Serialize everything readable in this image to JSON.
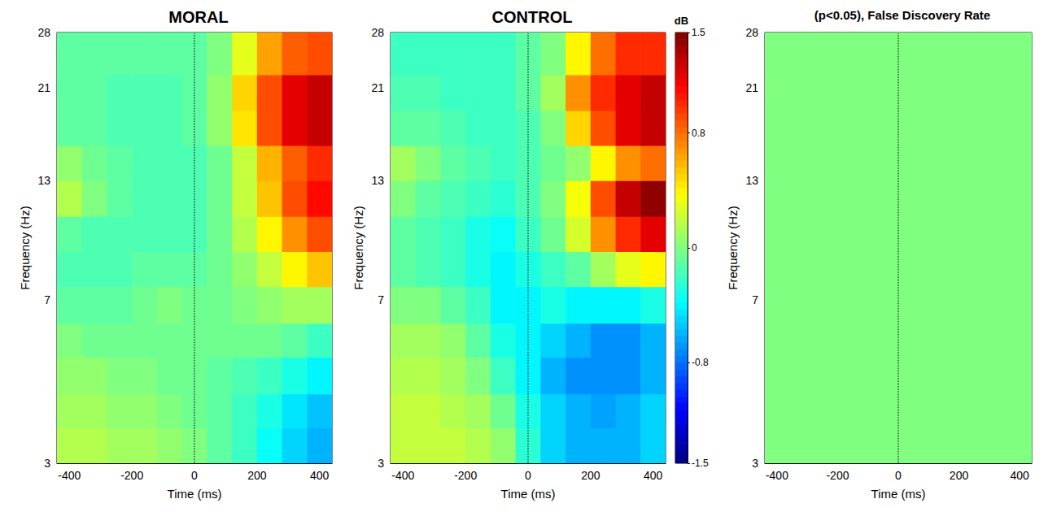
{
  "chart_data": [
    {
      "type": "heatmap",
      "title": "MORAL",
      "xlabel": "Time (ms)",
      "ylabel": "Frequency (Hz)",
      "xlim": [
        -440,
        440
      ],
      "xticks": [
        -400,
        -200,
        0,
        200,
        400
      ],
      "ylim": [
        3,
        28
      ],
      "yticks": [
        3,
        7,
        13,
        21,
        28
      ],
      "log": "y",
      "event_time": 0,
      "time_bins": [
        -440,
        -360,
        -280,
        -200,
        -120,
        -40,
        40,
        120,
        200,
        280,
        360,
        440
      ],
      "freq_bins": [
        3,
        3.6,
        4.3,
        5.2,
        6.2,
        7.5,
        9,
        10.8,
        13,
        15.6,
        18.7,
        22.5,
        28
      ],
      "cells": [
        [
          0.15,
          0.15,
          0.1,
          0.1,
          0.05,
          0,
          -0.1,
          -0.2,
          -0.35,
          -0.5,
          -0.6
        ],
        [
          0.1,
          0.1,
          0.05,
          0.05,
          0,
          -0.05,
          -0.1,
          -0.2,
          -0.3,
          -0.45,
          -0.55
        ],
        [
          0.05,
          0.05,
          0,
          0,
          -0.05,
          -0.05,
          -0.1,
          -0.15,
          -0.2,
          -0.3,
          -0.4
        ],
        [
          0,
          -0.05,
          -0.05,
          -0.05,
          -0.05,
          -0.05,
          -0.05,
          -0.05,
          -0.05,
          -0.1,
          -0.2
        ],
        [
          -0.1,
          -0.1,
          -0.1,
          -0.05,
          0,
          -0.05,
          -0.05,
          0,
          0.05,
          0.1,
          0.1
        ],
        [
          -0.15,
          -0.15,
          -0.15,
          -0.1,
          -0.1,
          -0.1,
          -0.05,
          0.05,
          0.2,
          0.4,
          0.55
        ],
        [
          -0.1,
          -0.15,
          -0.15,
          -0.15,
          -0.15,
          -0.15,
          -0.05,
          0.15,
          0.4,
          0.7,
          0.9
        ],
        [
          0.15,
          0,
          -0.1,
          -0.15,
          -0.15,
          -0.15,
          -0.05,
          0.2,
          0.55,
          0.9,
          1.1
        ],
        [
          0.05,
          -0.05,
          -0.1,
          -0.15,
          -0.15,
          -0.15,
          -0.05,
          0.2,
          0.6,
          0.85,
          1.0
        ],
        [
          -0.1,
          -0.1,
          -0.15,
          -0.15,
          -0.15,
          -0.1,
          0.05,
          0.45,
          0.9,
          1.2,
          1.3
        ],
        [
          -0.1,
          -0.1,
          -0.15,
          -0.15,
          -0.15,
          -0.1,
          0.05,
          0.5,
          0.9,
          1.2,
          1.3
        ],
        [
          -0.1,
          -0.1,
          -0.1,
          -0.1,
          -0.1,
          -0.1,
          0,
          0.3,
          0.65,
          0.85,
          0.9
        ]
      ]
    },
    {
      "type": "heatmap",
      "title": "CONTROL",
      "xlabel": "Time (ms)",
      "ylabel": "Frequency (Hz)",
      "xlim": [
        -440,
        440
      ],
      "xticks": [
        -400,
        -200,
        0,
        200,
        400
      ],
      "ylim": [
        3,
        28
      ],
      "yticks": [
        3,
        7,
        13,
        21,
        28
      ],
      "log": "y",
      "event_time": 0,
      "time_bins": [
        -440,
        -360,
        -280,
        -200,
        -120,
        -40,
        40,
        120,
        200,
        280,
        360,
        440
      ],
      "freq_bins": [
        3,
        3.6,
        4.3,
        5.2,
        6.2,
        7.5,
        9,
        10.8,
        13,
        15.6,
        18.7,
        22.5,
        28
      ],
      "cells": [
        [
          0.2,
          0.2,
          0.2,
          0.15,
          0.05,
          -0.25,
          -0.5,
          -0.6,
          -0.6,
          -0.6,
          -0.5
        ],
        [
          0.2,
          0.2,
          0.15,
          0.1,
          -0.05,
          -0.3,
          -0.5,
          -0.6,
          -0.65,
          -0.6,
          -0.5
        ],
        [
          0.15,
          0.15,
          0.1,
          0,
          -0.2,
          -0.4,
          -0.6,
          -0.7,
          -0.7,
          -0.7,
          -0.6
        ],
        [
          0.1,
          0.1,
          0.05,
          -0.1,
          -0.3,
          -0.4,
          -0.5,
          -0.6,
          -0.7,
          -0.7,
          -0.6
        ],
        [
          0,
          0,
          -0.1,
          -0.2,
          -0.4,
          -0.4,
          -0.3,
          -0.4,
          -0.4,
          -0.4,
          -0.3
        ],
        [
          -0.1,
          -0.15,
          -0.2,
          -0.3,
          -0.4,
          -0.3,
          -0.2,
          -0.1,
          0.1,
          0.3,
          0.4
        ],
        [
          -0.1,
          -0.15,
          -0.2,
          -0.3,
          -0.35,
          -0.2,
          -0.05,
          0.25,
          0.7,
          1.0,
          1.2
        ],
        [
          0,
          -0.1,
          -0.15,
          -0.2,
          -0.25,
          -0.15,
          0,
          0.35,
          0.9,
          1.3,
          1.45
        ],
        [
          0.1,
          0,
          -0.1,
          -0.15,
          -0.2,
          -0.15,
          -0.05,
          0.05,
          0.4,
          0.7,
          0.8
        ],
        [
          -0.1,
          -0.1,
          -0.15,
          -0.2,
          -0.2,
          -0.15,
          0,
          0.5,
          0.9,
          1.2,
          1.3
        ],
        [
          -0.15,
          -0.15,
          -0.2,
          -0.2,
          -0.2,
          -0.1,
          0.1,
          0.7,
          1.0,
          1.2,
          1.3
        ],
        [
          -0.2,
          -0.2,
          -0.2,
          -0.2,
          -0.2,
          -0.1,
          0,
          0.4,
          0.8,
          1.0,
          1.0
        ]
      ],
      "colorbar": {
        "label": "dB",
        "range": [
          -1.5,
          1.5
        ],
        "ticks": [
          1.5,
          0.8,
          0,
          -0.8,
          -1.5
        ]
      }
    },
    {
      "type": "heatmap",
      "title": "(p<0.05), False Discovery Rate",
      "xlabel": "Time (ms)",
      "ylabel": "Frequency (Hz)",
      "xlim": [
        -440,
        440
      ],
      "xticks": [
        -400,
        -200,
        0,
        200,
        400
      ],
      "ylim": [
        3,
        28
      ],
      "yticks": [
        3,
        7,
        13,
        21,
        28
      ],
      "log": "y",
      "event_time": 0,
      "time_bins": [
        -440,
        440
      ],
      "freq_bins": [
        3,
        28
      ],
      "cells": [
        [
          0
        ]
      ]
    }
  ]
}
